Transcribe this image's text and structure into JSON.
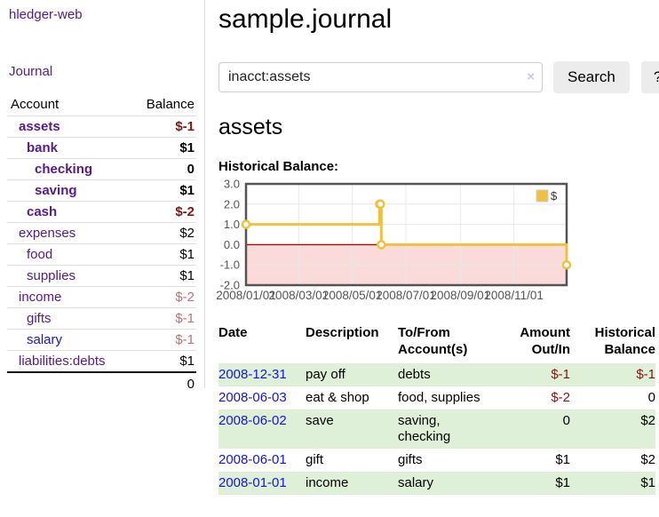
{
  "sidebar": {
    "app_title": "hledger-web",
    "journal_link": "Journal",
    "accounts": {
      "header_account": "Account",
      "header_balance": "Balance",
      "rows": [
        {
          "name": "assets",
          "level": 1,
          "bold": true,
          "balance": "$-1",
          "balance_style": "neg"
        },
        {
          "name": "bank",
          "level": 2,
          "bold": true,
          "balance": "$1",
          "balance_style": ""
        },
        {
          "name": "checking",
          "level": 3,
          "bold": true,
          "balance": "0",
          "balance_style": ""
        },
        {
          "name": "saving",
          "level": 3,
          "bold": true,
          "balance": "$1",
          "balance_style": ""
        },
        {
          "name": "cash",
          "level": 2,
          "bold": true,
          "balance": "$-2",
          "balance_style": "neg"
        },
        {
          "name": "expenses",
          "level": 1,
          "bold": false,
          "balance": "$2",
          "balance_style": ""
        },
        {
          "name": "food",
          "level": 2,
          "bold": false,
          "balance": "$1",
          "balance_style": ""
        },
        {
          "name": "supplies",
          "level": 2,
          "bold": false,
          "balance": "$1",
          "balance_style": ""
        },
        {
          "name": "income",
          "level": 1,
          "bold": false,
          "balance": "$-2",
          "balance_style": "negmuted"
        },
        {
          "name": "gifts",
          "level": 2,
          "bold": false,
          "balance": "$-1",
          "balance_style": "negmuted"
        },
        {
          "name": "salary",
          "level": 2,
          "bold": false,
          "balance": "$-1",
          "balance_style": "negmuted",
          "link_color": "blue"
        },
        {
          "name": "liabilities:debts",
          "level": 1,
          "bold": false,
          "balance": "$1",
          "balance_style": ""
        }
      ],
      "total": "0"
    }
  },
  "main": {
    "title": "sample.journal",
    "search": {
      "query": "inacct:assets",
      "clear_icon": "×",
      "button_label": "Search",
      "help_label": "?"
    },
    "account_heading": "assets",
    "register": {
      "headers": {
        "date": "Date",
        "sort_icon": "∧",
        "description": "Description",
        "accounts": "To/From Account(s)",
        "amount": "Amount Out/In",
        "balance": "Historical Balance"
      },
      "rows": [
        {
          "date": "2008-12-31",
          "description": "pay off",
          "accounts": "debts",
          "amount": "$-1",
          "amount_negative": true,
          "balance": "$-1",
          "balance_negative": true
        },
        {
          "date": "2008-06-03",
          "description": "eat & shop",
          "accounts": "food, supplies",
          "amount": "$-2",
          "amount_negative": true,
          "balance": "0",
          "balance_negative": false
        },
        {
          "date": "2008-06-02",
          "description": "save",
          "accounts": "saving, checking",
          "amount": "0",
          "amount_negative": false,
          "balance": "$2",
          "balance_negative": false
        },
        {
          "date": "2008-06-01",
          "description": "gift",
          "accounts": "gifts",
          "amount": "$1",
          "amount_negative": false,
          "balance": "$2",
          "balance_negative": false
        },
        {
          "date": "2008-01-01",
          "description": "income",
          "accounts": "salary",
          "amount": "$1",
          "amount_negative": false,
          "balance": "$1",
          "balance_negative": false
        }
      ]
    }
  },
  "colors": {
    "link_purple": "#551a8b",
    "link_blue": "#1414e0",
    "negative_dark_red": "#84150f",
    "negative_muted_rose": "#bf7179",
    "row_shade_green": "#dff0d8",
    "series_gold": "#edc240",
    "negative_region_pink": "#fbdada",
    "zero_line_red": "#9c0d0d",
    "button_gray": "#ececec"
  },
  "chart_data": {
    "type": "line",
    "step": true,
    "title": "Historical Balance:",
    "legend": {
      "label": "$",
      "position": "top-right"
    },
    "series": [
      {
        "name": "$",
        "color": "#edc240",
        "points": [
          [
            "2008-01-01",
            1
          ],
          [
            "2008-06-01",
            2
          ],
          [
            "2008-06-02",
            2
          ],
          [
            "2008-06-03",
            0
          ],
          [
            "2008-12-31",
            -1
          ]
        ]
      }
    ],
    "xlim": [
      "2008-01-01",
      "2008-12-31"
    ],
    "ylim": [
      -2,
      3
    ],
    "x_ticks": [
      {
        "t": "2008-01-01",
        "label": "2008/01/01"
      },
      {
        "t": "2008-03-01",
        "label": "2008/03/01"
      },
      {
        "t": "2008-05-01",
        "label": "2008/05/01"
      },
      {
        "t": "2008-07-01",
        "label": "2008/07/01"
      },
      {
        "t": "2008-09-01",
        "label": "2008/09/01"
      },
      {
        "t": "2008-11-01",
        "label": "2008/11/01"
      }
    ],
    "y_ticks": [
      {
        "v": 3,
        "label": "3.0"
      },
      {
        "v": 2,
        "label": "2.0"
      },
      {
        "v": 1,
        "label": "1.0"
      },
      {
        "v": 0,
        "label": "0.0"
      },
      {
        "v": -1,
        "label": "-1.0"
      },
      {
        "v": -2,
        "label": "-2.0"
      }
    ],
    "grid": true,
    "negative_region_color": "#fbdada",
    "zero_line_color": "#9c0d0d",
    "border_color": "#545454",
    "grid_color": "#e8e8e8",
    "tick_label_color": "#545454"
  }
}
